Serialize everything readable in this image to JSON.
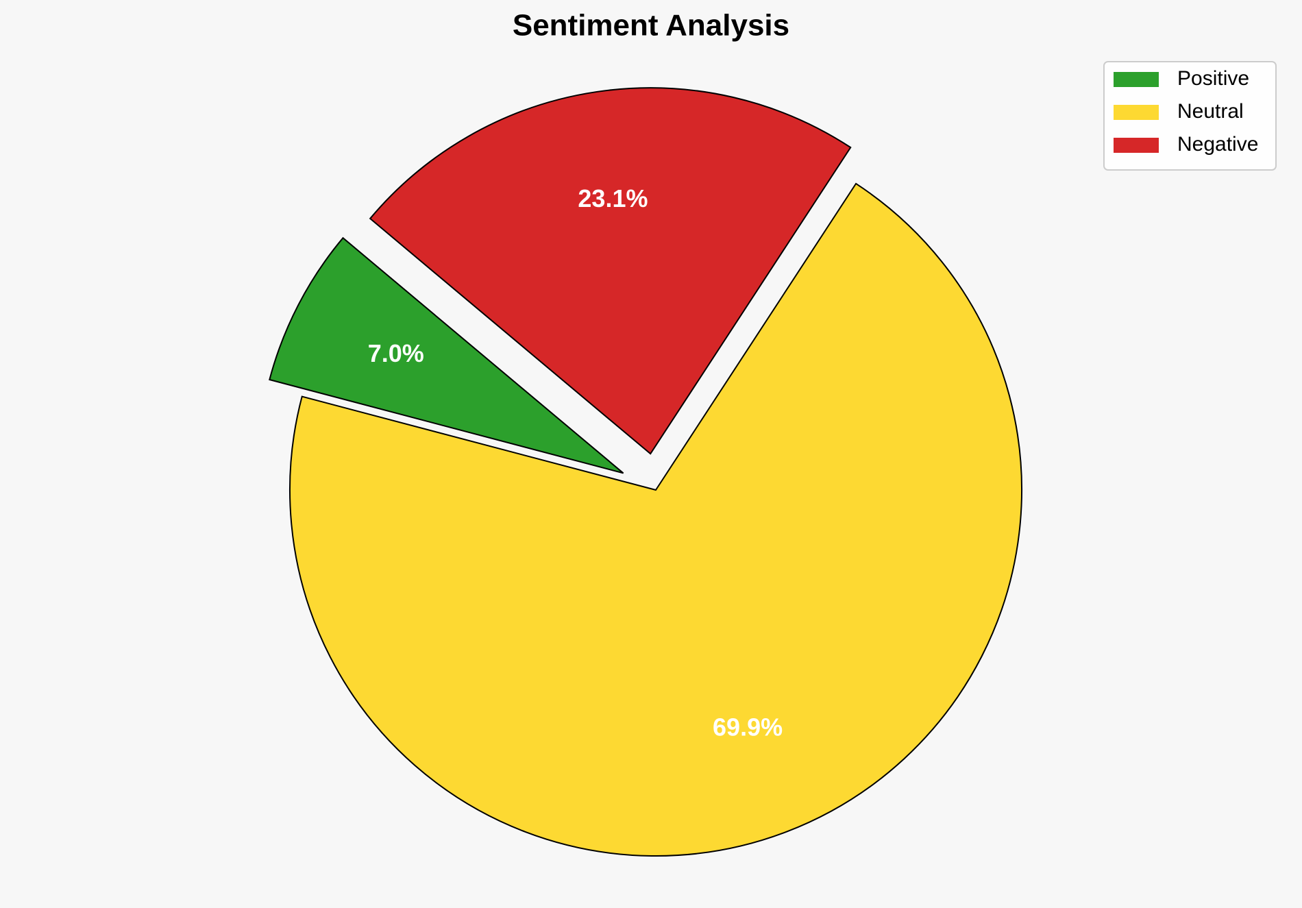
{
  "chart_data": {
    "type": "pie",
    "title": "Sentiment Analysis",
    "categories": [
      "Positive",
      "Neutral",
      "Negative"
    ],
    "values": [
      7.0,
      69.9,
      23.1
    ],
    "value_labels": [
      "7.0%",
      "69.9%",
      "23.1%"
    ],
    "colors": [
      "#2ca02c",
      "#fdd932",
      "#d62728"
    ],
    "explode": [
      0.1,
      0,
      0.1
    ],
    "legend": "upper right"
  }
}
